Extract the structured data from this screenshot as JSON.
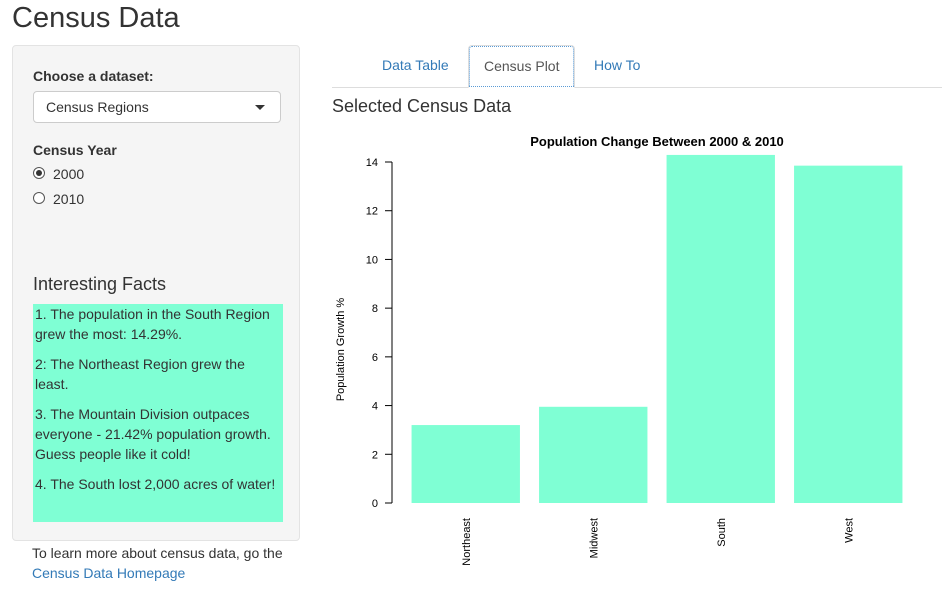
{
  "app": {
    "title": "Census Data"
  },
  "sidebar": {
    "dataset_label": "Choose a dataset:",
    "dataset_selected": "Census Regions",
    "year_label": "Census Year",
    "year_options": [
      {
        "label": "2000",
        "checked": true
      },
      {
        "label": "2010",
        "checked": false
      }
    ],
    "facts_heading": "Interesting Facts",
    "facts": [
      "1. The population in the South Region grew the most: 14.29%.",
      "2: The Northeast Region grew the least.",
      "3. The Mountain Division outpaces everyone - 21.42% population growth. Guess people like it cold!",
      "4. The South lost 2,000 acres of water!"
    ],
    "facts_color": "#7fffd4"
  },
  "footer": {
    "learn_more_text": "To learn more about census data, go the",
    "link_text": "Census Data Homepage"
  },
  "tabs": [
    {
      "label": "Data Table",
      "active": false
    },
    {
      "label": "Census Plot",
      "active": true
    },
    {
      "label": "How To",
      "active": false
    }
  ],
  "main": {
    "section_title": "Selected Census Data"
  },
  "colors": {
    "link": "#337ab7",
    "bar": "#7fffd4"
  },
  "chart_data": {
    "type": "bar",
    "title": "Population Change Between 2000 & 2010",
    "xlabel": "",
    "ylabel": "Population Growth %",
    "categories": [
      "Northeast",
      "Midwest",
      "South",
      "West"
    ],
    "values": [
      3.2,
      3.95,
      14.29,
      13.85
    ],
    "ylim": [
      0,
      14
    ],
    "yticks": [
      0,
      2,
      4,
      6,
      8,
      10,
      12,
      14
    ],
    "grid": false,
    "bar_color": "#7fffd4"
  }
}
